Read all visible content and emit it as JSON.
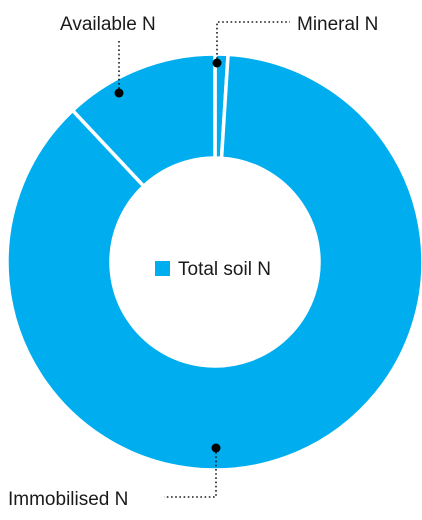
{
  "chart_data": {
    "type": "pie",
    "variant": "donut",
    "title": "",
    "legend": {
      "entries": [
        {
          "label": "Total soil N",
          "color": "#00AEEF"
        }
      ],
      "placement": "center"
    },
    "series": [
      {
        "name": "Total soil N",
        "slices": [
          {
            "label": "Mineral N",
            "value": 1.0,
            "color": "#00AEEF"
          },
          {
            "label": "Immobilised N",
            "value": 87.0,
            "color": "#00AEEF"
          },
          {
            "label": "Available N",
            "value": 12.0,
            "color": "#00AEEF"
          }
        ]
      }
    ],
    "slice_separator_color": "#ffffff",
    "start": "12 o'clock",
    "direction": "clockwise"
  }
}
